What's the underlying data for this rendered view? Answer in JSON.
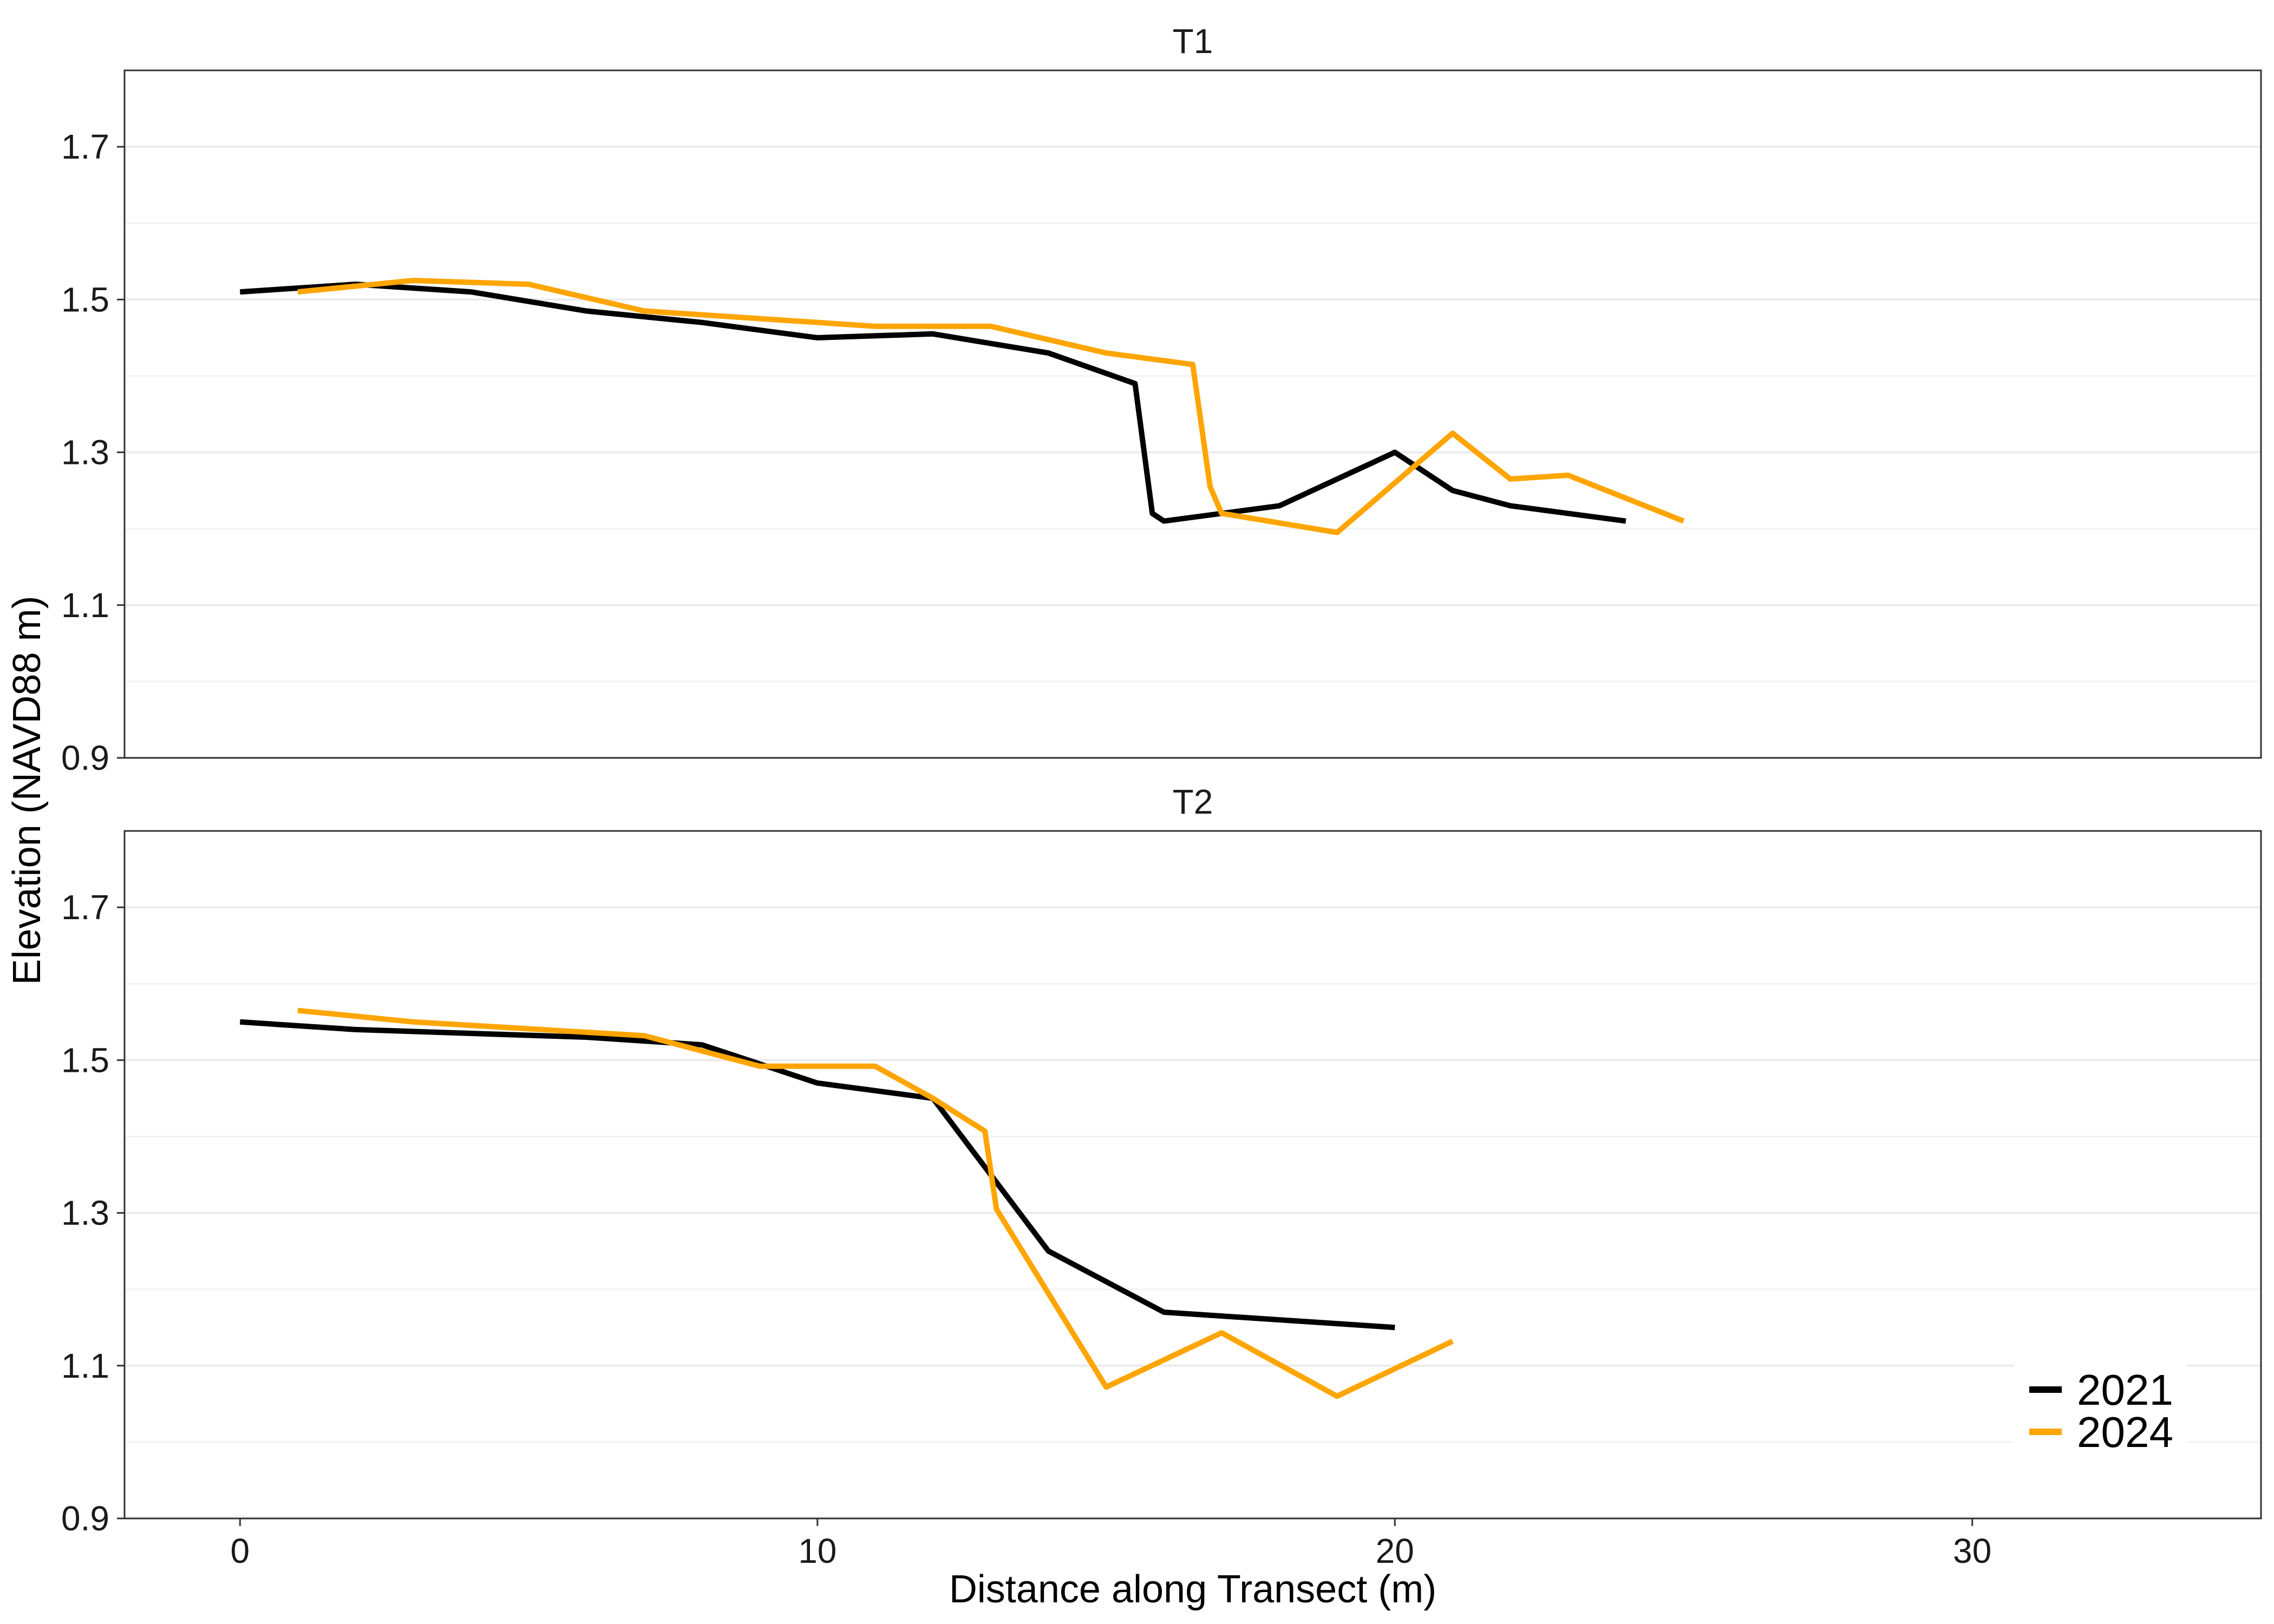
{
  "chart_data": {
    "type": "line",
    "xlabel": "Distance along Transect (m)",
    "ylabel": "Elevation (NAVD88 m)",
    "xlim": [
      -2,
      35
    ],
    "ylim": [
      0.9,
      1.8
    ],
    "x_ticks": [
      0,
      10,
      20,
      30
    ],
    "x_tick_labels": [
      "0",
      "10",
      "20",
      "30"
    ],
    "y_ticks": [
      0.9,
      1.1,
      1.3,
      1.5,
      1.7
    ],
    "y_tick_labels": [
      "0.9",
      "1.1",
      "1.3",
      "1.5",
      "1.7"
    ],
    "grid": true,
    "legend": {
      "placement": "bottom-right",
      "entries": [
        "2021",
        "2024"
      ]
    },
    "colors": {
      "2021": "#000000",
      "2024": "#FFA500"
    },
    "panels": [
      {
        "title": "T1",
        "series": [
          {
            "name": "2021",
            "x": [
              0,
              2,
              4,
              6,
              8,
              10,
              12,
              14,
              15.5,
              15.8,
              16,
              18,
              20,
              21,
              22,
              24
            ],
            "y": [
              1.51,
              1.52,
              1.51,
              1.485,
              1.47,
              1.45,
              1.455,
              1.43,
              1.39,
              1.22,
              1.21,
              1.23,
              1.3,
              1.25,
              1.23,
              1.21
            ]
          },
          {
            "name": "2024",
            "x": [
              1,
              3,
              5,
              7,
              9,
              11,
              13,
              15,
              16.5,
              16.8,
              17,
              19,
              21,
              22,
              23,
              25
            ],
            "y": [
              1.51,
              1.525,
              1.52,
              1.485,
              1.475,
              1.465,
              1.465,
              1.43,
              1.415,
              1.255,
              1.22,
              1.195,
              1.325,
              1.265,
              1.27,
              1.21
            ]
          }
        ]
      },
      {
        "title": "T2",
        "series": [
          {
            "name": "2021",
            "x": [
              0,
              2,
              6,
              8,
              10,
              12,
              14,
              16,
              20
            ],
            "y": [
              1.55,
              1.54,
              1.53,
              1.52,
              1.47,
              1.45,
              1.25,
              1.17,
              1.15
            ]
          },
          {
            "name": "2024",
            "x": [
              1,
              3,
              7,
              9,
              11,
              12,
              12.9,
              13.1,
              15,
              17,
              19,
              21
            ],
            "y": [
              1.565,
              1.55,
              1.532,
              1.492,
              1.492,
              1.45,
              1.407,
              1.305,
              1.072,
              1.143,
              1.06,
              1.132
            ]
          }
        ]
      }
    ]
  }
}
